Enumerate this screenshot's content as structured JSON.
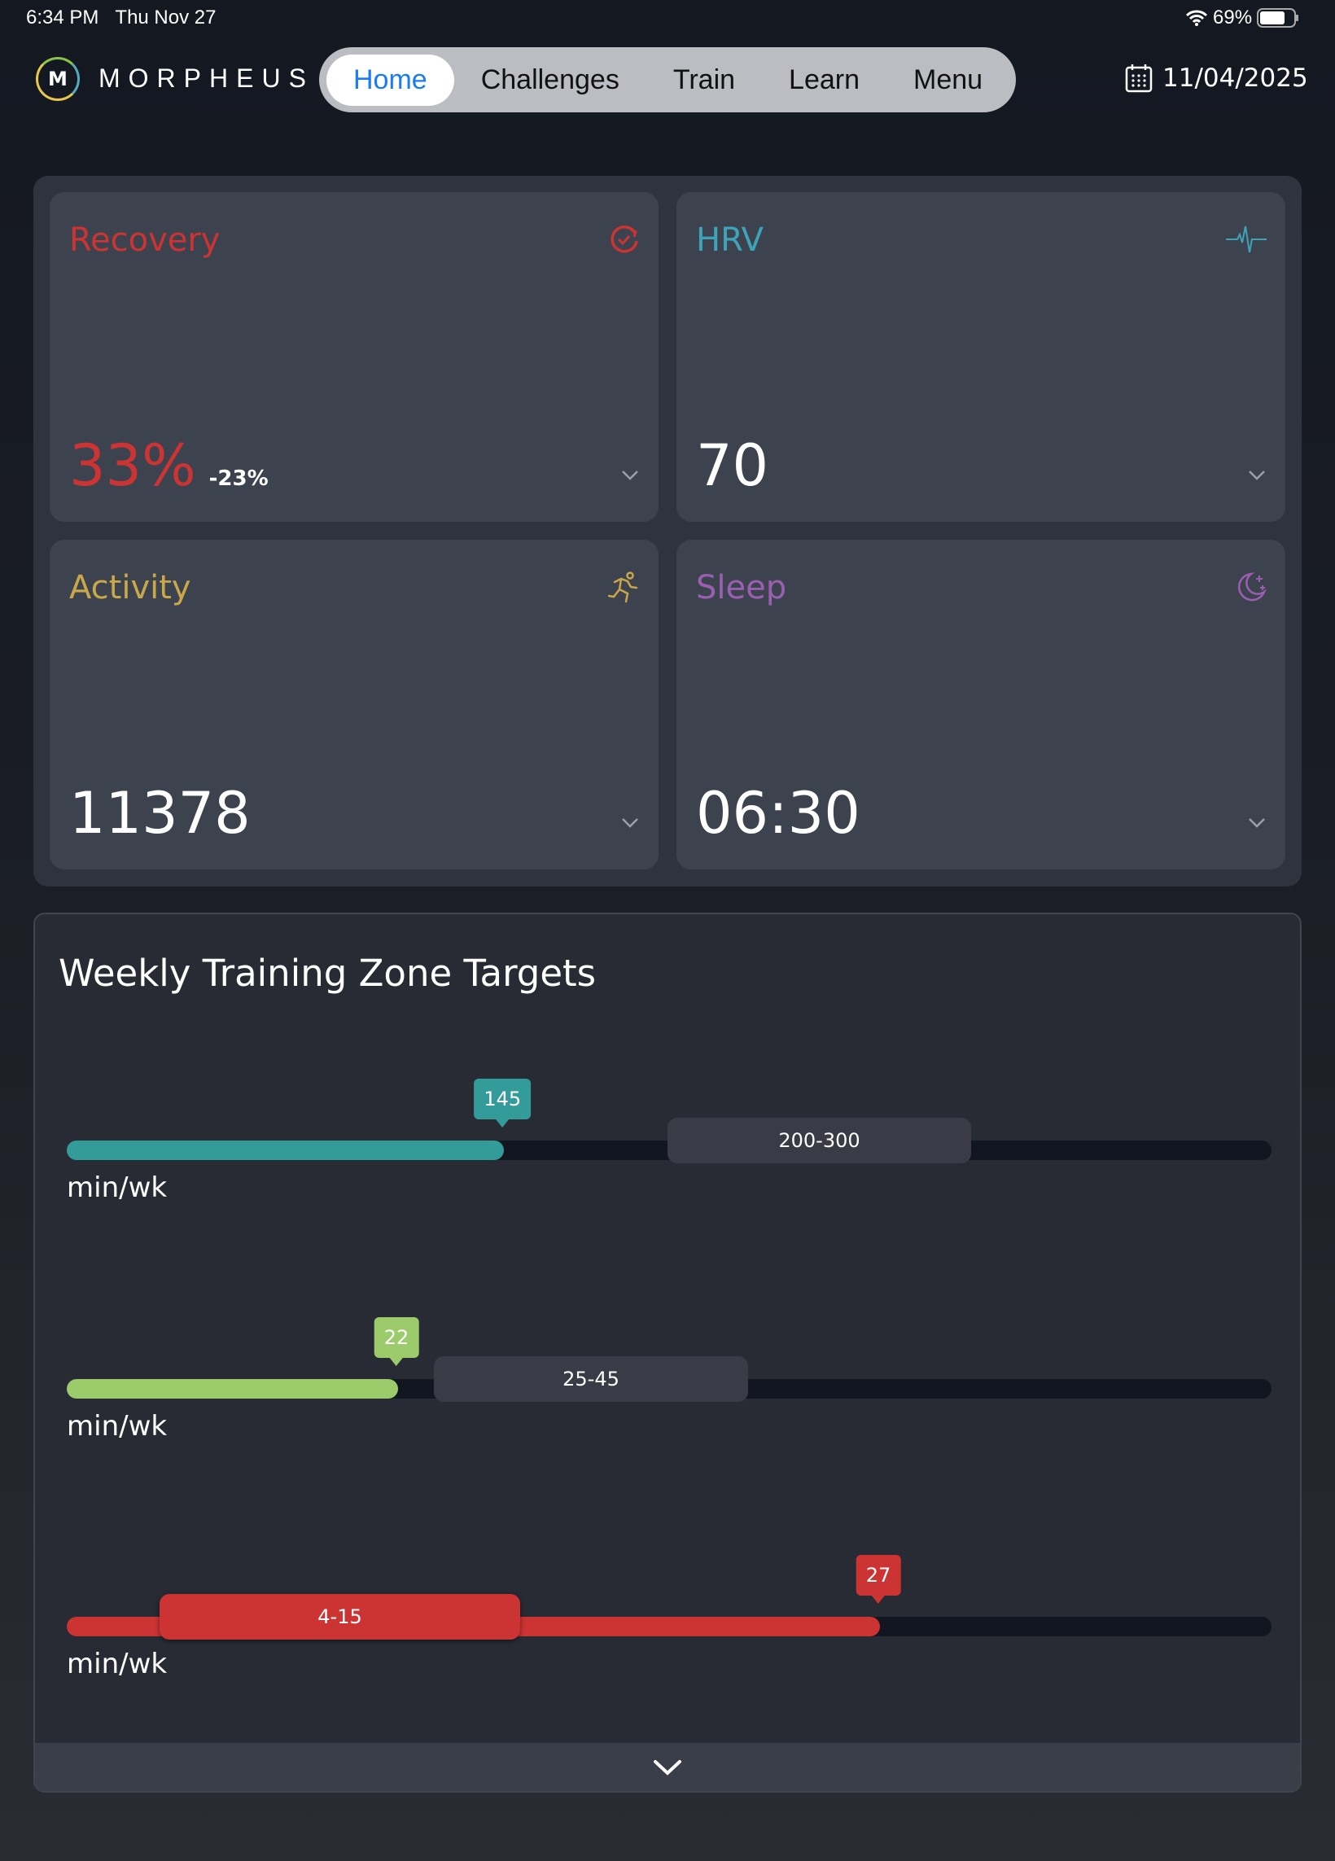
{
  "status": {
    "time": "6:34 PM",
    "day": "Thu Nov 27",
    "battery": "69%"
  },
  "nav": {
    "brand": "MORPHEUS",
    "logo_letter": "M",
    "tabs": [
      "Home",
      "Challenges",
      "Train",
      "Learn",
      "Menu"
    ],
    "active": "Home",
    "date": "11/04/2025"
  },
  "metrics": [
    {
      "title": "Recovery",
      "value": "33%",
      "delta": "-23%",
      "color": "#cc3333",
      "icon": "recovery-check-icon"
    },
    {
      "title": "HRV",
      "value": "70",
      "color": "#3fa3b8",
      "icon": "heartbeat-icon"
    },
    {
      "title": "Activity",
      "value": "11378",
      "color": "#c9a74a",
      "icon": "running-icon"
    },
    {
      "title": "Sleep",
      "value": "06:30",
      "color": "#9a5fb0",
      "icon": "moon-stars-icon"
    }
  ],
  "training": {
    "title": "Weekly Training Zone Targets",
    "zones": [
      {
        "value": "145",
        "target": "200-300",
        "unit": "min/wk",
        "fill_fraction": 0.363,
        "color": "#339b9a"
      },
      {
        "value": "22",
        "target": "25-45",
        "unit": "min/wk",
        "fill_fraction": 0.275,
        "color": "#9bcb6a"
      },
      {
        "value": "27",
        "target": "4-15",
        "unit": "min/wk",
        "fill_fraction": 0.675,
        "color": "#cc3333"
      }
    ]
  }
}
